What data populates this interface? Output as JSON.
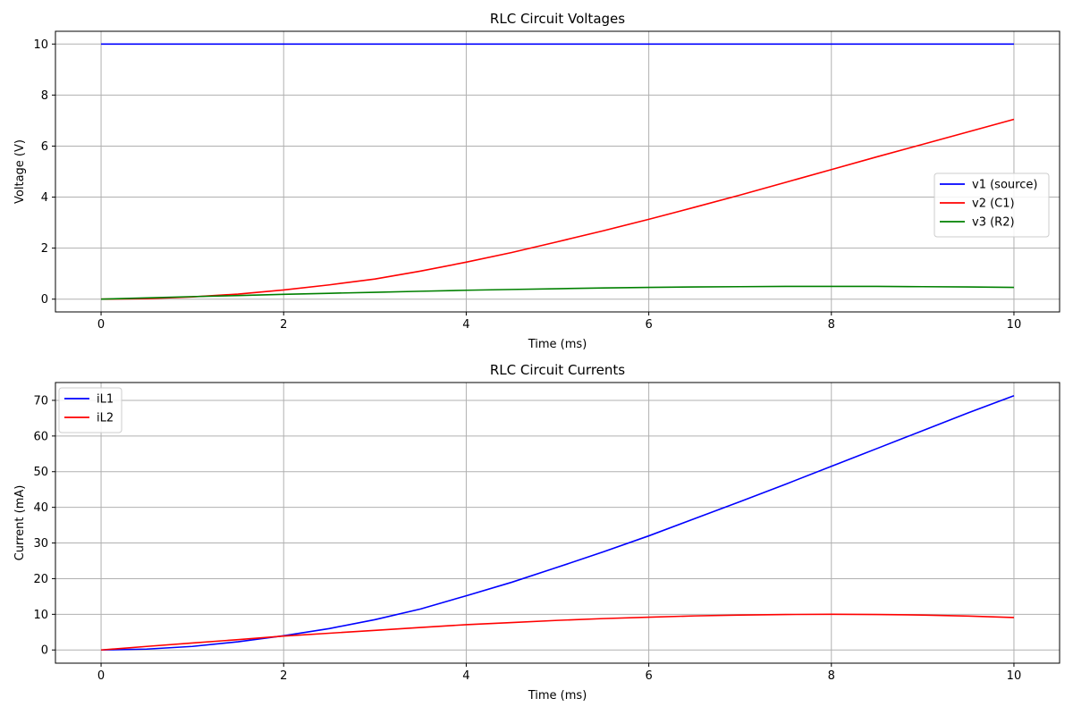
{
  "chart_data": [
    {
      "type": "line",
      "title": "RLC Circuit Voltages",
      "xlabel": "Time (ms)",
      "ylabel": "Voltage (V)",
      "xlim": [
        -0.5,
        10.5
      ],
      "ylim": [
        -0.5,
        10.5
      ],
      "xticks": [
        0,
        2,
        4,
        6,
        8,
        10
      ],
      "yticks": [
        0,
        2,
        4,
        6,
        8,
        10
      ],
      "grid": true,
      "legend": "center-right",
      "x": [
        0,
        0.5,
        1,
        1.5,
        2,
        2.5,
        3,
        3.5,
        4,
        4.5,
        5,
        5.5,
        6,
        6.5,
        7,
        7.5,
        8,
        8.5,
        9,
        9.5,
        10
      ],
      "series": [
        {
          "name": "v1 (source)",
          "color": "#0000ff",
          "values": [
            10,
            10,
            10,
            10,
            10,
            10,
            10,
            10,
            10,
            10,
            10,
            10,
            10,
            10,
            10,
            10,
            10,
            10,
            10,
            10,
            10
          ]
        },
        {
          "name": "v2 (C1)",
          "color": "#ff0000",
          "values": [
            0,
            0.02,
            0.09,
            0.2,
            0.36,
            0.56,
            0.79,
            1.1,
            1.45,
            1.83,
            2.25,
            2.68,
            3.13,
            3.6,
            4.08,
            4.58,
            5.08,
            5.58,
            6.07,
            6.56,
            7.05
          ]
        },
        {
          "name": "v3 (R2)",
          "color": "#008000",
          "values": [
            0,
            0.05,
            0.1,
            0.14,
            0.19,
            0.23,
            0.27,
            0.31,
            0.35,
            0.38,
            0.41,
            0.44,
            0.46,
            0.48,
            0.49,
            0.5,
            0.5,
            0.5,
            0.49,
            0.48,
            0.46
          ]
        }
      ]
    },
    {
      "type": "line",
      "title": "RLC Circuit Currents",
      "xlabel": "Time (ms)",
      "ylabel": "Current (mA)",
      "xlim": [
        -0.5,
        10.5
      ],
      "ylim": [
        -3.7,
        75
      ],
      "xticks": [
        0,
        2,
        4,
        6,
        8,
        10
      ],
      "yticks": [
        0,
        10,
        20,
        30,
        40,
        50,
        60,
        70
      ],
      "grid": true,
      "legend": "top-left",
      "x": [
        0,
        0.5,
        1,
        1.5,
        2,
        2.5,
        3,
        3.5,
        4,
        4.5,
        5,
        5.5,
        6,
        6.5,
        7,
        7.5,
        8,
        8.5,
        9,
        9.5,
        10
      ],
      "series": [
        {
          "name": "iL1",
          "color": "#0000ff",
          "values": [
            0,
            0.25,
            1,
            2.3,
            4,
            6,
            8.5,
            11.5,
            15.2,
            19,
            23.2,
            27.5,
            32,
            36.8,
            41.6,
            46.5,
            51.5,
            56.5,
            61.5,
            66.5,
            71.3
          ]
        },
        {
          "name": "iL2",
          "color": "#ff0000",
          "values": [
            0,
            1,
            1.95,
            2.9,
            3.9,
            4.7,
            5.5,
            6.3,
            7.1,
            7.7,
            8.3,
            8.8,
            9.2,
            9.55,
            9.8,
            9.95,
            10,
            9.95,
            9.8,
            9.5,
            9.1
          ]
        }
      ]
    }
  ]
}
